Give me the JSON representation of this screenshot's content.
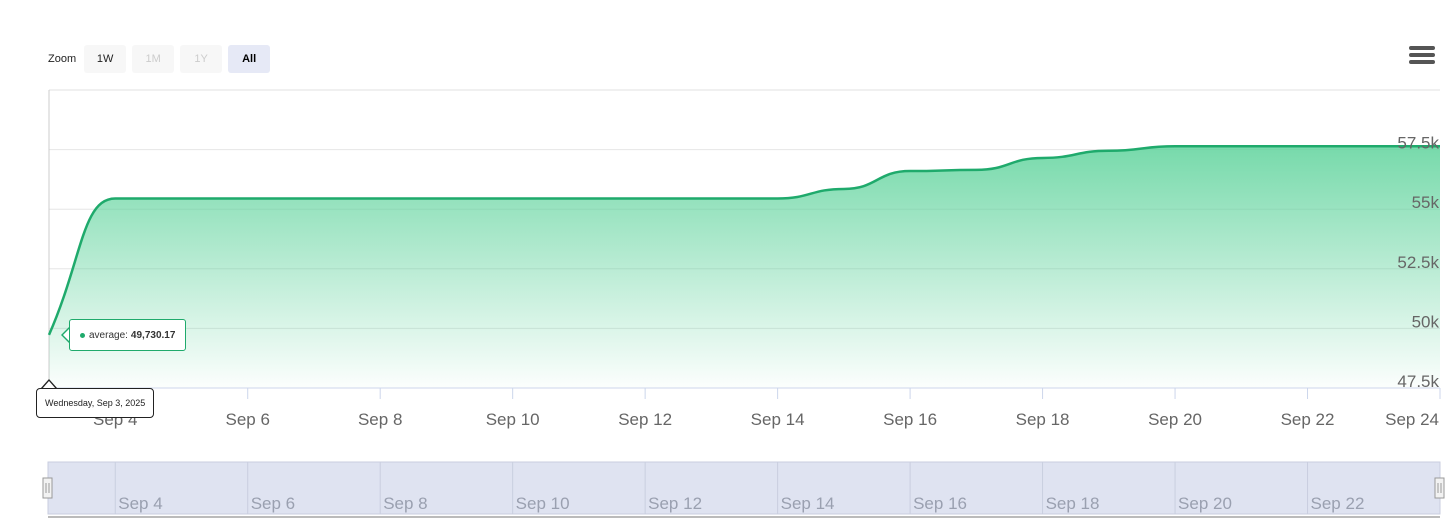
{
  "zoom": {
    "label": "Zoom",
    "buttons": [
      {
        "label": "1W",
        "state": "normal"
      },
      {
        "label": "1M",
        "state": "disabled"
      },
      {
        "label": "1Y",
        "state": "disabled"
      },
      {
        "label": "All",
        "state": "active"
      }
    ]
  },
  "menu": {
    "icon": "hamburger-menu-icon"
  },
  "tooltip": {
    "series_label": "average:",
    "value": "49,730.17",
    "date": "Wednesday, Sep 3, 2025"
  },
  "colors": {
    "line": "#1faa6c",
    "fill_top": "#5fd39c",
    "navigator_bg": "#dfe3f1"
  },
  "chart_data": {
    "type": "area",
    "title": "",
    "xlabel": "",
    "ylabel": "",
    "ylim": [
      47500,
      60000
    ],
    "xlim": [
      "2025-09-03",
      "2025-09-24"
    ],
    "y_ticks": [
      "47.5k",
      "50k",
      "52.5k",
      "55k",
      "57.5k"
    ],
    "y_tick_values": [
      47500,
      50000,
      52500,
      55000,
      57500
    ],
    "x_ticks": [
      "Sep 4",
      "Sep 6",
      "Sep 8",
      "Sep 10",
      "Sep 12",
      "Sep 14",
      "Sep 16",
      "Sep 18",
      "Sep 20",
      "Sep 22",
      "Sep 24"
    ],
    "navigator_ticks": [
      "Sep 4",
      "Sep 6",
      "Sep 8",
      "Sep 10",
      "Sep 12",
      "Sep 14",
      "Sep 16",
      "Sep 18",
      "Sep 20",
      "Sep 22"
    ],
    "series": [
      {
        "name": "average",
        "x": [
          "2025-09-03",
          "2025-09-04",
          "2025-09-14",
          "2025-09-15",
          "2025-09-16",
          "2025-09-17",
          "2025-09-18",
          "2025-09-19",
          "2025-09-20",
          "2025-09-24"
        ],
        "y": [
          49730.17,
          55450,
          55450,
          55850,
          56600,
          56650,
          57150,
          57450,
          57640,
          57640
        ]
      }
    ],
    "grid": true,
    "legend": "none",
    "navigator": true
  }
}
